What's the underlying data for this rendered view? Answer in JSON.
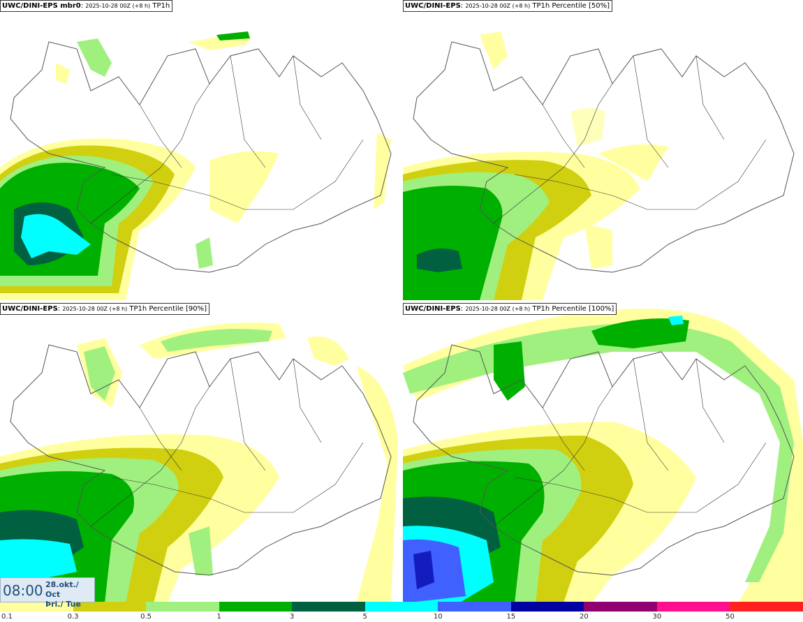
{
  "panels": [
    {
      "model": "UWC/DINI-EPS mbr0",
      "run": "2025-10-28 00Z (+8 h)",
      "field": "TP1h"
    },
    {
      "model": "UWC/DINI-EPS",
      "run": "2025-10-28 00Z (+8 h)",
      "field": "TP1h Percentile [50%]"
    },
    {
      "model": "UWC/DINI-EPS",
      "run": "2025-10-28 00Z (+8 h)",
      "field": "TP1h Percentile [90%]"
    },
    {
      "model": "UWC/DINI-EPS",
      "run": "2025-10-28 00Z (+8 h)",
      "field": "TP1h Percentile [100%]"
    }
  ],
  "valid_time": {
    "time": "08:00",
    "date_line1": "28.okt./ Oct",
    "date_line2": "Þri./ Tue"
  },
  "legend": {
    "colors": [
      "#ffffa0",
      "#d0d010",
      "#a0f080",
      "#00b000",
      "#006040",
      "#00ffff",
      "#4060ff",
      "#0000a0",
      "#900070",
      "#ff1090",
      "#ff2020"
    ],
    "labels": [
      "0.1",
      "0.3",
      "0.5",
      "1",
      "3",
      "5",
      "10",
      "15",
      "20",
      "30",
      "50"
    ]
  },
  "map_colors": {
    "coast": "#555555",
    "road": "#333333"
  }
}
